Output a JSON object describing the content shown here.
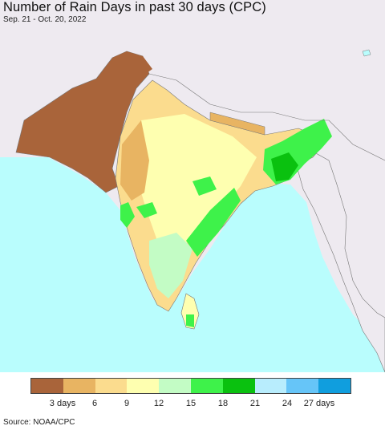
{
  "map": {
    "title": "Number of Rain Days in past 30 days (CPC)",
    "date_range": "Sep. 21 - Oct. 20, 2022",
    "ocean_color": "#b9fdfd",
    "land_outside_color": "#eeeaf0"
  },
  "legend": {
    "colors": [
      "#a9643a",
      "#e8b462",
      "#fbdc8e",
      "#feffb0",
      "#c3fcc5",
      "#3ef24a",
      "#0ac10f",
      "#b8edfd",
      "#66c5f8",
      "#109ede"
    ],
    "labels": [
      "3 days",
      "6",
      "9",
      "12",
      "15",
      "18",
      "21",
      "24",
      "27 days"
    ]
  },
  "source": "Source: NOAA/CPC"
}
